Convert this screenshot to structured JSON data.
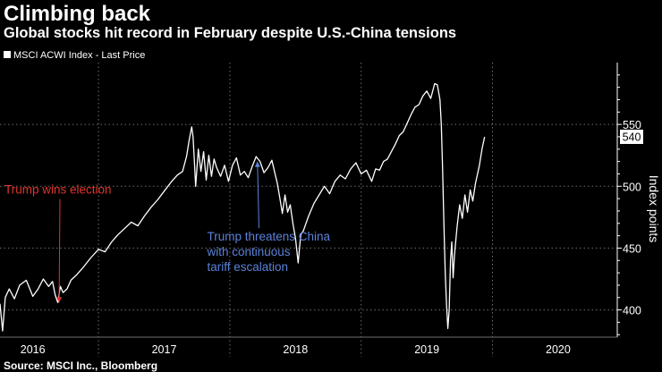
{
  "title": "Climbing back",
  "subtitle": "Global stocks hit record in February despite U.S.-China tensions",
  "source": "Source: MSCI Inc., Bloomberg",
  "colors": {
    "background": "#000000",
    "line": "#ffffff",
    "grid": "#6e6e6e",
    "annotation_red": "#e0342c",
    "annotation_blue": "#5b82d9",
    "text": "#ffffff"
  },
  "chart_data": {
    "type": "line",
    "title": "Climbing back",
    "subtitle": "Global stocks hit record in February despite U.S.-China tensions",
    "legend": [
      "MSCI ACWI Index - Last Price"
    ],
    "legend_position": "top-left",
    "xlabel": "",
    "ylabel": "Index points",
    "xlim": [
      2015.75,
      2020.45
    ],
    "ylim": [
      378,
      600
    ],
    "yticks": [
      400,
      450,
      500,
      550
    ],
    "year_ticks": [
      2016,
      2017,
      2018,
      2019,
      2020
    ],
    "year_separators": [
      2016.5,
      2017.5,
      2018.5,
      2019.5
    ],
    "grid": true,
    "last_value_label": "540",
    "last_value": 540,
    "series": [
      {
        "name": "MSCI ACWI Index - Last Price",
        "points": [
          [
            2015.75,
            405
          ],
          [
            2015.77,
            383
          ],
          [
            2015.79,
            410
          ],
          [
            2015.82,
            417
          ],
          [
            2015.86,
            409
          ],
          [
            2015.9,
            420
          ],
          [
            2015.95,
            424
          ],
          [
            2016.0,
            411
          ],
          [
            2016.04,
            417
          ],
          [
            2016.08,
            425
          ],
          [
            2016.12,
            419
          ],
          [
            2016.15,
            423
          ],
          [
            2016.17,
            412
          ],
          [
            2016.19,
            406
          ],
          [
            2016.21,
            419
          ],
          [
            2016.23,
            414
          ],
          [
            2016.26,
            417
          ],
          [
            2016.29,
            424
          ],
          [
            2016.33,
            428
          ],
          [
            2016.38,
            434
          ],
          [
            2016.44,
            442
          ],
          [
            2016.5,
            449
          ],
          [
            2016.55,
            447
          ],
          [
            2016.6,
            455
          ],
          [
            2016.65,
            461
          ],
          [
            2016.7,
            466
          ],
          [
            2016.75,
            471
          ],
          [
            2016.8,
            468
          ],
          [
            2016.85,
            476
          ],
          [
            2016.9,
            483
          ],
          [
            2016.95,
            489
          ],
          [
            2017.0,
            496
          ],
          [
            2017.05,
            503
          ],
          [
            2017.1,
            509
          ],
          [
            2017.14,
            512
          ],
          [
            2017.17,
            524
          ],
          [
            2017.19,
            537
          ],
          [
            2017.21,
            548
          ],
          [
            2017.22,
            540
          ],
          [
            2017.23,
            520
          ],
          [
            2017.24,
            500
          ],
          [
            2017.26,
            530
          ],
          [
            2017.28,
            512
          ],
          [
            2017.3,
            528
          ],
          [
            2017.32,
            505
          ],
          [
            2017.34,
            525
          ],
          [
            2017.36,
            508
          ],
          [
            2017.38,
            522
          ],
          [
            2017.4,
            515
          ],
          [
            2017.43,
            508
          ],
          [
            2017.46,
            517
          ],
          [
            2017.49,
            504
          ],
          [
            2017.52,
            517
          ],
          [
            2017.55,
            523
          ],
          [
            2017.58,
            509
          ],
          [
            2017.61,
            512
          ],
          [
            2017.64,
            507
          ],
          [
            2017.67,
            516
          ],
          [
            2017.7,
            524
          ],
          [
            2017.73,
            520
          ],
          [
            2017.76,
            511
          ],
          [
            2017.79,
            515
          ],
          [
            2017.82,
            521
          ],
          [
            2017.84,
            512
          ],
          [
            2017.86,
            503
          ],
          [
            2017.88,
            491
          ],
          [
            2017.9,
            478
          ],
          [
            2017.92,
            493
          ],
          [
            2017.94,
            479
          ],
          [
            2017.96,
            485
          ],
          [
            2017.98,
            470
          ],
          [
            2018.0,
            458
          ],
          [
            2018.02,
            438
          ],
          [
            2018.04,
            461
          ],
          [
            2018.06,
            464
          ],
          [
            2018.1,
            476
          ],
          [
            2018.14,
            486
          ],
          [
            2018.18,
            493
          ],
          [
            2018.22,
            500
          ],
          [
            2018.26,
            494
          ],
          [
            2018.3,
            504
          ],
          [
            2018.34,
            509
          ],
          [
            2018.38,
            506
          ],
          [
            2018.42,
            514
          ],
          [
            2018.46,
            519
          ],
          [
            2018.5,
            510
          ],
          [
            2018.54,
            513
          ],
          [
            2018.58,
            504
          ],
          [
            2018.61,
            514
          ],
          [
            2018.64,
            513
          ],
          [
            2018.67,
            520
          ],
          [
            2018.7,
            522
          ],
          [
            2018.73,
            528
          ],
          [
            2018.76,
            534
          ],
          [
            2018.79,
            541
          ],
          [
            2018.82,
            544
          ],
          [
            2018.85,
            551
          ],
          [
            2018.88,
            558
          ],
          [
            2018.91,
            564
          ],
          [
            2018.94,
            566
          ],
          [
            2018.97,
            573
          ],
          [
            2019.0,
            577
          ],
          [
            2019.03,
            571
          ],
          [
            2019.06,
            583
          ],
          [
            2019.08,
            582
          ],
          [
            2019.1,
            570
          ],
          [
            2019.11,
            550
          ],
          [
            2019.12,
            515
          ],
          [
            2019.13,
            470
          ],
          [
            2019.14,
            430
          ],
          [
            2019.15,
            405
          ],
          [
            2019.16,
            385
          ],
          [
            2019.17,
            400
          ],
          [
            2019.18,
            440
          ],
          [
            2019.19,
            455
          ],
          [
            2019.2,
            426
          ],
          [
            2019.21,
            444
          ],
          [
            2019.23,
            467
          ],
          [
            2019.25,
            485
          ],
          [
            2019.27,
            474
          ],
          [
            2019.29,
            493
          ],
          [
            2019.31,
            479
          ],
          [
            2019.33,
            497
          ],
          [
            2019.35,
            488
          ],
          [
            2019.37,
            502
          ],
          [
            2019.4,
            517
          ],
          [
            2019.42,
            530
          ],
          [
            2019.44,
            540
          ]
        ]
      }
    ],
    "annotations": [
      {
        "text": "Trump wins election",
        "color": "red",
        "points_to": [
          2016.2,
          406
        ],
        "text_anchor": [
          2016.22,
          494
        ]
      },
      {
        "text": "Trump threatens China\nwith continuous\ntariff escalation",
        "color": "blue",
        "points_to": [
          2017.71,
          520
        ],
        "text_anchor": [
          2017.64,
          456
        ]
      }
    ]
  }
}
